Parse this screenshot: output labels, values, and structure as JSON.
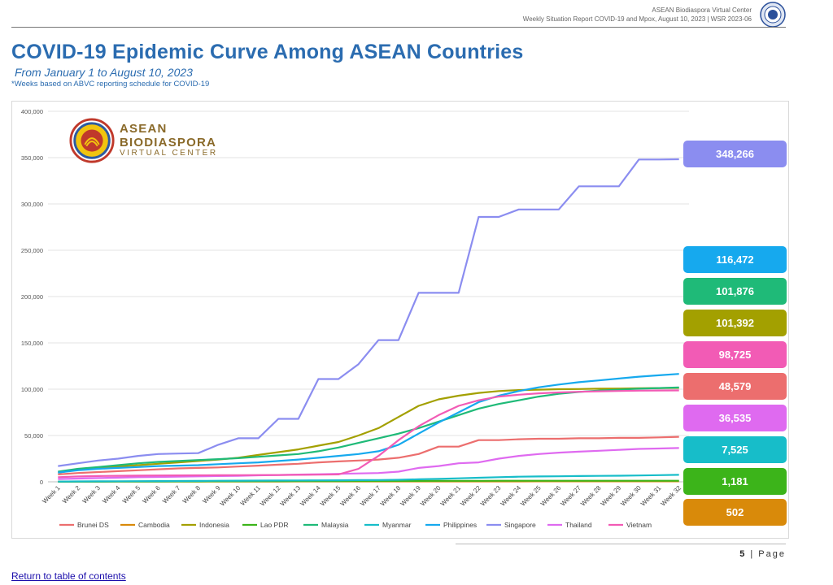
{
  "header": {
    "line1": "ASEAN Biodiaspora Virtual Center",
    "line2": "Weekly Situation Report COVID-19 and Mpox, August 10, 2023 | WSR 2023-06"
  },
  "title": "COVID-19 Epidemic Curve Among ASEAN Countries",
  "subtitle": "From January 1 to August 10, 2023",
  "note": "*Weeks based on ABVC reporting schedule for COVID-19",
  "logo": {
    "line1": "ASEAN",
    "line2": "BIODIASPORA",
    "line3": "VIRTUAL CENTER"
  },
  "badges": [
    {
      "value": "348,266",
      "color": "#8b8df0"
    },
    {
      "value": "116,472",
      "color": "#16a9ee"
    },
    {
      "value": "101,876",
      "color": "#1fba78"
    },
    {
      "value": "101,392",
      "color": "#a3a000"
    },
    {
      "value": "98,725",
      "color": "#f25bb5"
    },
    {
      "value": "48,579",
      "color": "#ec6e6e"
    },
    {
      "value": "36,535",
      "color": "#df6af0"
    },
    {
      "value": "7,525",
      "color": "#17bdc9"
    },
    {
      "value": "1,181",
      "color": "#3cb41a"
    },
    {
      "value": "502",
      "color": "#d98a0a"
    }
  ],
  "footer": {
    "page": "5",
    "page_word": "Page",
    "toc_link": "Return to table of contents"
  },
  "chart_data": {
    "type": "line",
    "title": "",
    "xlabel": "",
    "ylabel": "",
    "ylim": [
      0,
      400000
    ],
    "yticks": [
      0,
      50000,
      100000,
      150000,
      200000,
      250000,
      300000,
      350000,
      400000
    ],
    "ytick_labels": [
      "0",
      "50,000",
      "100,000",
      "150,000",
      "200,000",
      "250,000",
      "300,000",
      "350,000",
      "400,000"
    ],
    "grid": true,
    "legend_position": "bottom",
    "categories": [
      "Week 1",
      "Week 2",
      "Week 3",
      "Week 4",
      "Week 5",
      "Week 6",
      "Week 7",
      "Week 8",
      "Week 9",
      "Week 10",
      "Week 11",
      "Week 12",
      "Week 13",
      "Week 14",
      "Week 15",
      "Week 16",
      "Week 17",
      "Week 18",
      "Week 19",
      "Week 20",
      "Week 21",
      "Week 22",
      "Week 23",
      "Week 24",
      "Week 25",
      "Week 26",
      "Week 27",
      "Week 28",
      "Week 29",
      "Week 30",
      "Week 31",
      "Week 32"
    ],
    "series": [
      {
        "name": "Brunei DS",
        "color": "#ec6e6e",
        "values": [
          8000,
          9500,
          10500,
          11500,
          12500,
          13500,
          14500,
          15000,
          15500,
          16500,
          17500,
          18500,
          19500,
          21000,
          22000,
          23000,
          24000,
          26000,
          30000,
          38000,
          38000,
          45000,
          45000,
          46000,
          46500,
          46500,
          47000,
          47000,
          47500,
          47500,
          48000,
          48579
        ]
      },
      {
        "name": "Cambodia",
        "color": "#d98a0a",
        "values": [
          150,
          180,
          200,
          220,
          240,
          260,
          280,
          300,
          320,
          340,
          360,
          380,
          400,
          410,
          420,
          430,
          440,
          450,
          455,
          460,
          465,
          470,
          475,
          480,
          485,
          488,
          490,
          493,
          495,
          497,
          500,
          502
        ]
      },
      {
        "name": "Indonesia",
        "color": "#a3a000",
        "values": [
          10000,
          13000,
          15000,
          16500,
          18000,
          19500,
          21000,
          22500,
          24000,
          26000,
          29000,
          32000,
          35000,
          39000,
          43000,
          50000,
          58000,
          70000,
          82000,
          89000,
          93000,
          96000,
          98000,
          99000,
          99500,
          100000,
          100200,
          100500,
          100700,
          101000,
          101200,
          101392
        ]
      },
      {
        "name": "Lao PDR",
        "color": "#3cb41a",
        "values": [
          100,
          150,
          200,
          250,
          300,
          350,
          400,
          450,
          500,
          550,
          600,
          650,
          700,
          750,
          800,
          850,
          900,
          950,
          1000,
          1030,
          1060,
          1080,
          1100,
          1110,
          1120,
          1130,
          1140,
          1150,
          1160,
          1170,
          1175,
          1181
        ]
      },
      {
        "name": "Malaysia",
        "color": "#1fba78",
        "values": [
          11000,
          14000,
          16000,
          18000,
          20000,
          21500,
          22500,
          23500,
          24500,
          25500,
          27000,
          28500,
          30000,
          33000,
          37000,
          42000,
          47000,
          52000,
          58000,
          65000,
          72000,
          79000,
          84000,
          88000,
          92000,
          95000,
          97000,
          98500,
          99500,
          100500,
          101200,
          101876
        ]
      },
      {
        "name": "Myanmar",
        "color": "#17bdc9",
        "values": [
          300,
          400,
          500,
          600,
          700,
          800,
          900,
          1000,
          1100,
          1200,
          1300,
          1400,
          1500,
          1600,
          1700,
          1800,
          1900,
          2200,
          2700,
          3200,
          3800,
          4400,
          5000,
          5500,
          5800,
          6000,
          6200,
          6400,
          6600,
          6800,
          7200,
          7525
        ]
      },
      {
        "name": "Philippines",
        "color": "#16a9ee",
        "values": [
          10000,
          12500,
          14000,
          15000,
          16000,
          17000,
          17500,
          18000,
          19000,
          20000,
          21000,
          22500,
          24000,
          26000,
          28000,
          30000,
          33000,
          40000,
          52000,
          64000,
          75000,
          86000,
          93000,
          98000,
          102000,
          105000,
          107500,
          109500,
          111500,
          113500,
          115000,
          116472
        ]
      },
      {
        "name": "Singapore",
        "color": "#8b8df0",
        "values": [
          17000,
          20000,
          23000,
          25000,
          28000,
          30000,
          30500,
          31000,
          40000,
          47000,
          47000,
          68000,
          68000,
          111000,
          111000,
          127000,
          153000,
          153000,
          204000,
          204000,
          204000,
          286000,
          286000,
          294000,
          294000,
          294000,
          319000,
          319000,
          319000,
          348000,
          348000,
          348266
        ]
      },
      {
        "name": "Thailand",
        "color": "#df6af0",
        "values": [
          3000,
          3500,
          4000,
          4500,
          5000,
          5300,
          5600,
          5900,
          6200,
          6500,
          7000,
          7400,
          7800,
          8200,
          8600,
          9000,
          9500,
          11000,
          15000,
          17000,
          20000,
          21000,
          25000,
          28000,
          30000,
          31500,
          32500,
          33500,
          34500,
          35500,
          36000,
          36535
        ]
      },
      {
        "name": "Vietnam",
        "color": "#f25bb5",
        "values": [
          5000,
          5800,
          6200,
          6500,
          6700,
          6800,
          6900,
          7000,
          7100,
          7200,
          7300,
          7400,
          7500,
          7700,
          8000,
          14000,
          28000,
          45000,
          60000,
          72000,
          82000,
          88000,
          92000,
          94000,
          95500,
          96500,
          97200,
          97700,
          98100,
          98400,
          98600,
          98725
        ]
      }
    ]
  }
}
